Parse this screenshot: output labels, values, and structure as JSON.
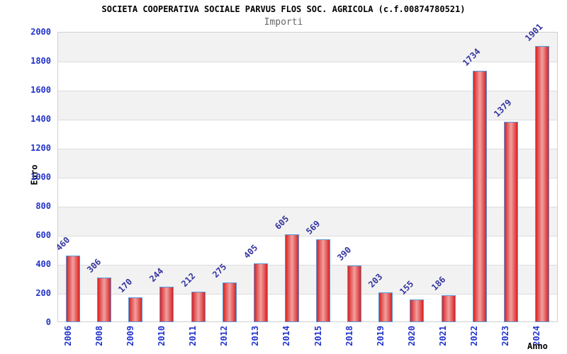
{
  "header": {
    "title": "SOCIETA COOPERATIVA SOCIALE PARVUS FLOS SOC. AGRICOLA (c.f.00874780521)",
    "subtitle": "Importi"
  },
  "chart_data": {
    "type": "bar",
    "title": "SOCIETA COOPERATIVA SOCIALE PARVUS FLOS SOC. AGRICOLA (c.f.00874780521)",
    "subtitle": "Importi",
    "categories": [
      "2006",
      "2008",
      "2009",
      "2010",
      "2011",
      "2012",
      "2013",
      "2014",
      "2015",
      "2018",
      "2019",
      "2020",
      "2021",
      "2022",
      "2023",
      "2024"
    ],
    "values": [
      460,
      306,
      170,
      244,
      212,
      275,
      405,
      605,
      569,
      390,
      203,
      155,
      186,
      1734,
      1379,
      1901
    ],
    "xlabel": "Anno",
    "ylabel": "Euro",
    "ylim": [
      0,
      2000
    ],
    "ytick_step": 200,
    "ytick_labels": [
      "0",
      "200",
      "400",
      "600",
      "800",
      "1000",
      "1200",
      "1400",
      "1600",
      "1800",
      "2000"
    ],
    "grid": true,
    "legend_position": "none",
    "value_labels_rotation_deg": -45,
    "x_labels_rotation_deg": -90
  },
  "colors": {
    "bar_gradient_edge": "#d82323",
    "bar_gradient_center": "#f2a0a0",
    "bar_border": "#5599dd",
    "axis_tick_label": "#2233cc",
    "value_label": "#3333a0",
    "band_gray": "#f2f2f2",
    "gridline": "#dcdcdc",
    "plot_border": "#d0d0d0",
    "title": "#000000",
    "subtitle": "#666666",
    "background": "#ffffff"
  }
}
